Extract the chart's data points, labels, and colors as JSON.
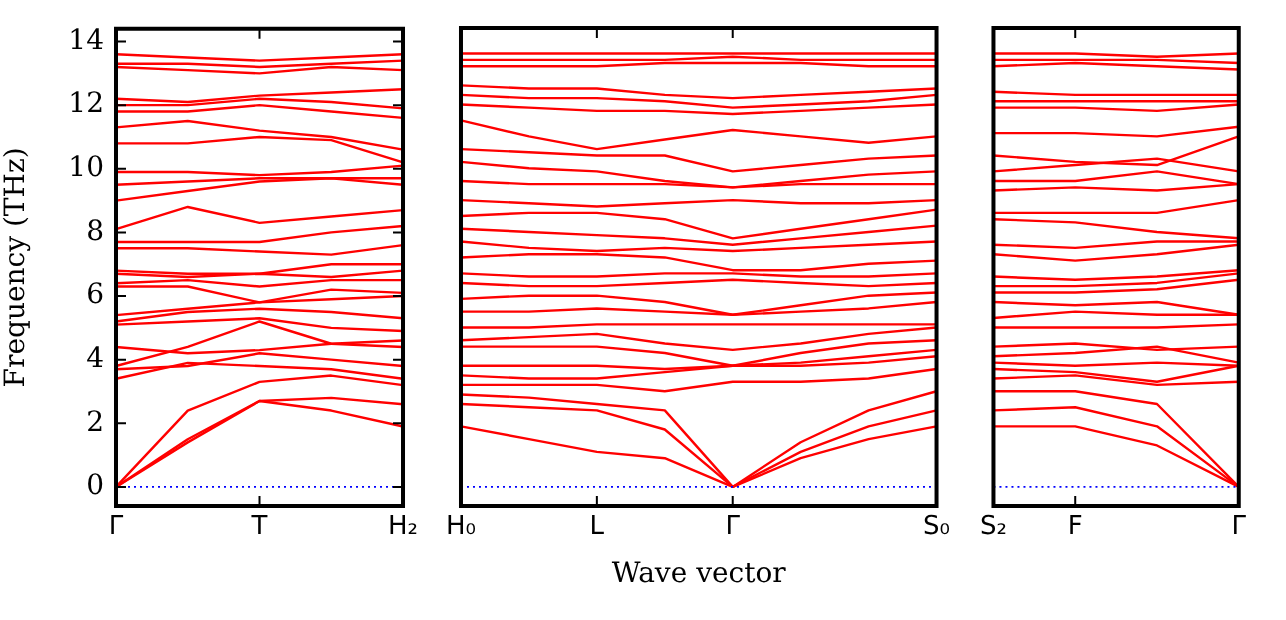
{
  "chart_data": [
    {
      "type": "line",
      "ylabel": "Frequency (THz)",
      "categories": [
        "Γ",
        null,
        "T",
        null,
        "H₂"
      ],
      "ylim": [
        -0.6,
        14.4
      ],
      "yticks": [
        0,
        2,
        4,
        6,
        8,
        10,
        12,
        14
      ],
      "ref_lines": [
        {
          "axis": "y",
          "value": 0,
          "color": "#0000ff",
          "line_style": "dotted"
        }
      ],
      "series": [
        {
          "color": "#ff0000",
          "values": [
            0,
            1.5,
            2.7,
            2.4,
            1.9
          ]
        },
        {
          "color": "#ff0000",
          "values": [
            0,
            1.4,
            2.7,
            2.8,
            2.6
          ]
        },
        {
          "color": "#ff0000",
          "values": [
            0,
            2.4,
            3.3,
            3.5,
            3.2
          ]
        },
        {
          "color": "#ff0000",
          "values": [
            3.4,
            3.9,
            3.8,
            3.7,
            3.4
          ]
        },
        {
          "color": "#ff0000",
          "values": [
            3.7,
            3.8,
            4.2,
            4.0,
            3.8
          ]
        },
        {
          "color": "#ff0000",
          "values": [
            3.8,
            4.4,
            5.2,
            4.5,
            4.4
          ]
        },
        {
          "color": "#ff0000",
          "values": [
            4.4,
            4.2,
            4.3,
            4.5,
            4.6
          ]
        },
        {
          "color": "#ff0000",
          "values": [
            5.1,
            5.2,
            5.3,
            5.0,
            4.9
          ]
        },
        {
          "color": "#ff0000",
          "values": [
            5.2,
            5.5,
            5.6,
            5.5,
            5.3
          ]
        },
        {
          "color": "#ff0000",
          "values": [
            5.4,
            5.6,
            5.8,
            5.9,
            6.0
          ]
        },
        {
          "color": "#ff0000",
          "values": [
            6.3,
            6.3,
            5.8,
            6.2,
            6.1
          ]
        },
        {
          "color": "#ff0000",
          "values": [
            6.4,
            6.5,
            6.3,
            6.5,
            6.5
          ]
        },
        {
          "color": "#ff0000",
          "values": [
            6.7,
            6.6,
            6.7,
            6.6,
            6.8
          ]
        },
        {
          "color": "#ff0000",
          "values": [
            6.8,
            6.7,
            6.7,
            7.0,
            7.0
          ]
        },
        {
          "color": "#ff0000",
          "values": [
            7.5,
            7.5,
            7.4,
            7.3,
            7.6
          ]
        },
        {
          "color": "#ff0000",
          "values": [
            7.7,
            7.7,
            7.7,
            8.0,
            8.2
          ]
        },
        {
          "color": "#ff0000",
          "values": [
            8.1,
            8.8,
            8.3,
            8.5,
            8.7
          ]
        },
        {
          "color": "#ff0000",
          "values": [
            9.0,
            9.3,
            9.6,
            9.7,
            9.5
          ]
        },
        {
          "color": "#ff0000",
          "values": [
            9.5,
            9.6,
            9.7,
            9.7,
            9.7
          ]
        },
        {
          "color": "#ff0000",
          "values": [
            9.9,
            9.9,
            9.8,
            9.9,
            10.1
          ]
        },
        {
          "color": "#ff0000",
          "values": [
            10.8,
            10.8,
            11.0,
            10.9,
            10.2
          ]
        },
        {
          "color": "#ff0000",
          "values": [
            11.3,
            11.5,
            11.2,
            11.0,
            10.6
          ]
        },
        {
          "color": "#ff0000",
          "values": [
            11.8,
            11.8,
            12.0,
            11.8,
            11.6
          ]
        },
        {
          "color": "#ff0000",
          "values": [
            12.0,
            12.0,
            12.2,
            12.1,
            11.9
          ]
        },
        {
          "color": "#ff0000",
          "values": [
            12.2,
            12.1,
            12.3,
            12.4,
            12.5
          ]
        },
        {
          "color": "#ff0000",
          "values": [
            13.2,
            13.1,
            13.0,
            13.2,
            13.1
          ]
        },
        {
          "color": "#ff0000",
          "values": [
            13.3,
            13.3,
            13.2,
            13.3,
            13.4
          ]
        },
        {
          "color": "#ff0000",
          "values": [
            13.6,
            13.5,
            13.4,
            13.5,
            13.6
          ]
        }
      ]
    },
    {
      "type": "line",
      "xlabel": "Wave vector",
      "tick_labels": "x",
      "categories": [
        "H₀",
        null,
        "L",
        null,
        "Γ",
        null,
        null,
        "S₀"
      ],
      "ylim": [
        -0.6,
        14.4
      ],
      "ref_lines": [
        {
          "axis": "y",
          "value": 0,
          "color": "#0000ff",
          "line_style": "dotted"
        }
      ],
      "series": [
        {
          "color": "#ff0000",
          "values": [
            1.9,
            1.5,
            1.1,
            0.9,
            0,
            0.9,
            1.5,
            1.9
          ]
        },
        {
          "color": "#ff0000",
          "values": [
            2.6,
            2.5,
            2.4,
            1.8,
            0,
            1.1,
            1.9,
            2.4
          ]
        },
        {
          "color": "#ff0000",
          "values": [
            2.9,
            2.8,
            2.6,
            2.4,
            0,
            1.4,
            2.4,
            3.0
          ]
        },
        {
          "color": "#ff0000",
          "values": [
            3.2,
            3.2,
            3.2,
            3.0,
            3.3,
            3.3,
            3.4,
            3.7
          ]
        },
        {
          "color": "#ff0000",
          "values": [
            3.5,
            3.4,
            3.4,
            3.6,
            3.8,
            3.8,
            3.9,
            4.1
          ]
        },
        {
          "color": "#ff0000",
          "values": [
            3.8,
            3.8,
            3.8,
            3.7,
            3.8,
            3.9,
            4.1,
            4.3
          ]
        },
        {
          "color": "#ff0000",
          "values": [
            4.4,
            4.4,
            4.4,
            4.2,
            3.8,
            4.2,
            4.5,
            4.6
          ]
        },
        {
          "color": "#ff0000",
          "values": [
            4.6,
            4.7,
            4.8,
            4.5,
            4.3,
            4.5,
            4.8,
            5.0
          ]
        },
        {
          "color": "#ff0000",
          "values": [
            5.0,
            5.0,
            5.1,
            5.1,
            5.1,
            5.1,
            5.1,
            5.1
          ]
        },
        {
          "color": "#ff0000",
          "values": [
            5.5,
            5.5,
            5.6,
            5.5,
            5.4,
            5.5,
            5.6,
            5.8
          ]
        },
        {
          "color": "#ff0000",
          "values": [
            5.9,
            6.0,
            6.0,
            5.8,
            5.4,
            5.7,
            6.0,
            6.1
          ]
        },
        {
          "color": "#ff0000",
          "values": [
            6.4,
            6.3,
            6.3,
            6.4,
            6.5,
            6.4,
            6.3,
            6.4
          ]
        },
        {
          "color": "#ff0000",
          "values": [
            6.7,
            6.6,
            6.6,
            6.7,
            6.7,
            6.6,
            6.6,
            6.7
          ]
        },
        {
          "color": "#ff0000",
          "values": [
            7.2,
            7.3,
            7.3,
            7.2,
            6.8,
            6.8,
            7.0,
            7.1
          ]
        },
        {
          "color": "#ff0000",
          "values": [
            7.7,
            7.5,
            7.4,
            7.5,
            7.4,
            7.5,
            7.6,
            7.7
          ]
        },
        {
          "color": "#ff0000",
          "values": [
            8.1,
            8.0,
            7.9,
            7.8,
            7.6,
            7.8,
            8.0,
            8.2
          ]
        },
        {
          "color": "#ff0000",
          "values": [
            8.5,
            8.6,
            8.6,
            8.4,
            7.8,
            8.1,
            8.4,
            8.7
          ]
        },
        {
          "color": "#ff0000",
          "values": [
            9.0,
            8.9,
            8.8,
            8.9,
            9.0,
            8.9,
            8.9,
            9.0
          ]
        },
        {
          "color": "#ff0000",
          "values": [
            9.6,
            9.5,
            9.5,
            9.5,
            9.4,
            9.5,
            9.5,
            9.5
          ]
        },
        {
          "color": "#ff0000",
          "values": [
            10.2,
            10.0,
            9.9,
            9.6,
            9.4,
            9.6,
            9.8,
            9.9
          ]
        },
        {
          "color": "#ff0000",
          "values": [
            10.6,
            10.5,
            10.4,
            10.4,
            9.9,
            10.1,
            10.3,
            10.4
          ]
        },
        {
          "color": "#ff0000",
          "values": [
            11.5,
            11.0,
            10.6,
            10.9,
            11.2,
            11.0,
            10.8,
            11.0
          ]
        },
        {
          "color": "#ff0000",
          "values": [
            12.0,
            11.9,
            11.8,
            11.8,
            11.7,
            11.8,
            11.9,
            12.0
          ]
        },
        {
          "color": "#ff0000",
          "values": [
            12.3,
            12.2,
            12.2,
            12.1,
            11.9,
            12.0,
            12.1,
            12.3
          ]
        },
        {
          "color": "#ff0000",
          "values": [
            12.6,
            12.5,
            12.5,
            12.3,
            12.2,
            12.3,
            12.4,
            12.5
          ]
        },
        {
          "color": "#ff0000",
          "values": [
            13.2,
            13.2,
            13.2,
            13.3,
            13.3,
            13.3,
            13.2,
            13.2
          ]
        },
        {
          "color": "#ff0000",
          "values": [
            13.4,
            13.4,
            13.4,
            13.4,
            13.5,
            13.4,
            13.4,
            13.4
          ]
        },
        {
          "color": "#ff0000",
          "values": [
            13.6,
            13.6,
            13.6,
            13.6,
            13.6,
            13.6,
            13.6,
            13.6
          ]
        }
      ]
    },
    {
      "type": "line",
      "tick_labels": "x",
      "categories": [
        "S₂",
        "F",
        null,
        "Γ"
      ],
      "ylim": [
        -0.6,
        14.4
      ],
      "ref_lines": [
        {
          "axis": "y",
          "value": 0,
          "color": "#0000ff",
          "line_style": "dotted"
        }
      ],
      "series": [
        {
          "color": "#ff0000",
          "values": [
            1.9,
            1.9,
            1.3,
            0
          ]
        },
        {
          "color": "#ff0000",
          "values": [
            2.4,
            2.5,
            1.9,
            0
          ]
        },
        {
          "color": "#ff0000",
          "values": [
            3.0,
            3.0,
            2.6,
            0
          ]
        },
        {
          "color": "#ff0000",
          "values": [
            3.4,
            3.5,
            3.2,
            3.3
          ]
        },
        {
          "color": "#ff0000",
          "values": [
            3.7,
            3.6,
            3.3,
            3.8
          ]
        },
        {
          "color": "#ff0000",
          "values": [
            3.9,
            3.8,
            3.9,
            3.8
          ]
        },
        {
          "color": "#ff0000",
          "values": [
            4.1,
            4.2,
            4.4,
            3.9
          ]
        },
        {
          "color": "#ff0000",
          "values": [
            4.4,
            4.5,
            4.3,
            4.4
          ]
        },
        {
          "color": "#ff0000",
          "values": [
            5.0,
            5.0,
            5.0,
            5.1
          ]
        },
        {
          "color": "#ff0000",
          "values": [
            5.3,
            5.5,
            5.4,
            5.4
          ]
        },
        {
          "color": "#ff0000",
          "values": [
            5.8,
            5.7,
            5.8,
            5.4
          ]
        },
        {
          "color": "#ff0000",
          "values": [
            6.1,
            6.1,
            6.2,
            6.5
          ]
        },
        {
          "color": "#ff0000",
          "values": [
            6.3,
            6.3,
            6.4,
            6.7
          ]
        },
        {
          "color": "#ff0000",
          "values": [
            6.6,
            6.5,
            6.6,
            6.8
          ]
        },
        {
          "color": "#ff0000",
          "values": [
            7.3,
            7.1,
            7.3,
            7.6
          ]
        },
        {
          "color": "#ff0000",
          "values": [
            7.6,
            7.5,
            7.7,
            7.7
          ]
        },
        {
          "color": "#ff0000",
          "values": [
            8.4,
            8.3,
            8.0,
            7.8
          ]
        },
        {
          "color": "#ff0000",
          "values": [
            8.6,
            8.6,
            8.6,
            9.0
          ]
        },
        {
          "color": "#ff0000",
          "values": [
            9.3,
            9.4,
            9.3,
            9.5
          ]
        },
        {
          "color": "#ff0000",
          "values": [
            9.6,
            9.6,
            9.9,
            9.5
          ]
        },
        {
          "color": "#ff0000",
          "values": [
            9.9,
            10.1,
            10.3,
            9.9
          ]
        },
        {
          "color": "#ff0000",
          "values": [
            10.4,
            10.2,
            10.1,
            11.0
          ]
        },
        {
          "color": "#ff0000",
          "values": [
            11.1,
            11.1,
            11.0,
            11.3
          ]
        },
        {
          "color": "#ff0000",
          "values": [
            11.9,
            11.9,
            11.8,
            12.0
          ]
        },
        {
          "color": "#ff0000",
          "values": [
            12.1,
            12.1,
            12.1,
            12.1
          ]
        },
        {
          "color": "#ff0000",
          "values": [
            12.4,
            12.3,
            12.3,
            12.3
          ]
        },
        {
          "color": "#ff0000",
          "values": [
            13.2,
            13.3,
            13.2,
            13.1
          ]
        },
        {
          "color": "#ff0000",
          "values": [
            13.4,
            13.4,
            13.4,
            13.3
          ]
        },
        {
          "color": "#ff0000",
          "values": [
            13.6,
            13.6,
            13.5,
            13.6
          ]
        }
      ]
    }
  ]
}
